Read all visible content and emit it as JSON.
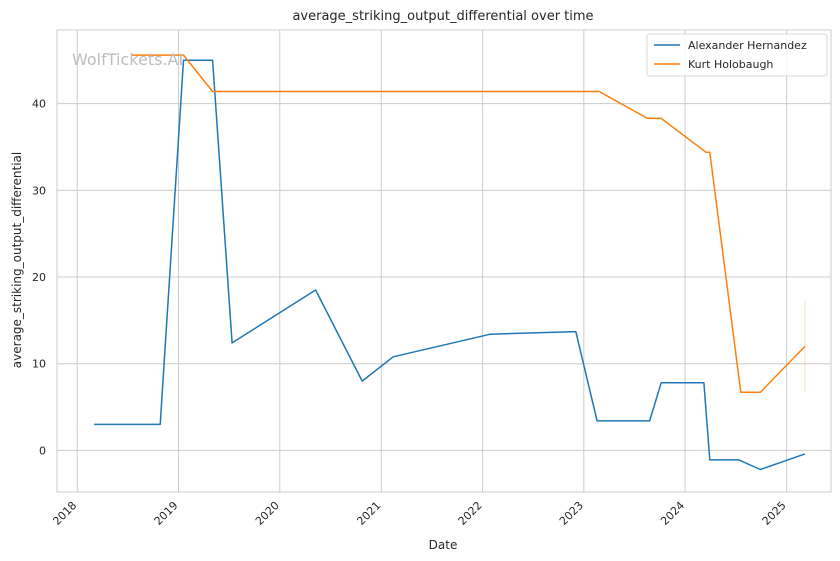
{
  "chart_data": {
    "type": "line",
    "title": "average_striking_output_differential over time",
    "xlabel": "Date",
    "ylabel": "average_striking_output_differential",
    "watermark": "WolfTickets.AI",
    "xlim": [
      "2017-10-20",
      "2025-06-10"
    ],
    "ylim": [
      -4.8,
      48.5
    ],
    "x_ticks": [
      "2018",
      "2019",
      "2020",
      "2021",
      "2022",
      "2023",
      "2024",
      "2025"
    ],
    "y_ticks": [
      0,
      10,
      20,
      30,
      40
    ],
    "grid": true,
    "legend_position": "top-right",
    "colors": {
      "series_1": "#1f77b4",
      "series_2": "#ff7f0e",
      "grid": "#cccccc",
      "spine": "#cccccc"
    },
    "series": [
      {
        "name": "Alexander Hernandez",
        "color": "#1f77b4",
        "points": [
          [
            "2018-03-03",
            3.0
          ],
          [
            "2018-10-27",
            3.0
          ],
          [
            "2019-01-19",
            45.0
          ],
          [
            "2019-05-04",
            45.0
          ],
          [
            "2019-07-13",
            12.4
          ],
          [
            "2020-05-09",
            18.5
          ],
          [
            "2020-10-24",
            8.0
          ],
          [
            "2021-02-13",
            10.8
          ],
          [
            "2022-01-29",
            13.4
          ],
          [
            "2022-12-03",
            13.7
          ],
          [
            "2023-02-18",
            3.4
          ],
          [
            "2023-08-26",
            3.4
          ],
          [
            "2023-10-07",
            7.8
          ],
          [
            "2024-03-09",
            7.8
          ],
          [
            "2024-03-30",
            -1.1
          ],
          [
            "2024-07-13",
            -1.1
          ],
          [
            "2024-09-28",
            -2.2
          ],
          [
            "2025-03-08",
            -0.4
          ]
        ]
      },
      {
        "name": "Kurt Holobaugh",
        "color": "#ff7f0e",
        "points": [
          [
            "2018-07-14",
            45.6
          ],
          [
            "2019-01-19",
            45.6
          ],
          [
            "2019-05-04",
            41.4
          ],
          [
            "2023-02-25",
            41.4
          ],
          [
            "2023-08-19",
            38.3
          ],
          [
            "2023-10-07",
            38.3
          ],
          [
            "2024-03-16",
            34.4
          ],
          [
            "2024-03-30",
            34.4
          ],
          [
            "2024-07-20",
            6.7
          ],
          [
            "2024-09-28",
            6.7
          ],
          [
            "2025-03-08",
            12.0
          ]
        ],
        "error_band": {
          "x": "2025-03-08",
          "low": 6.6,
          "high": 17.3
        }
      }
    ]
  }
}
